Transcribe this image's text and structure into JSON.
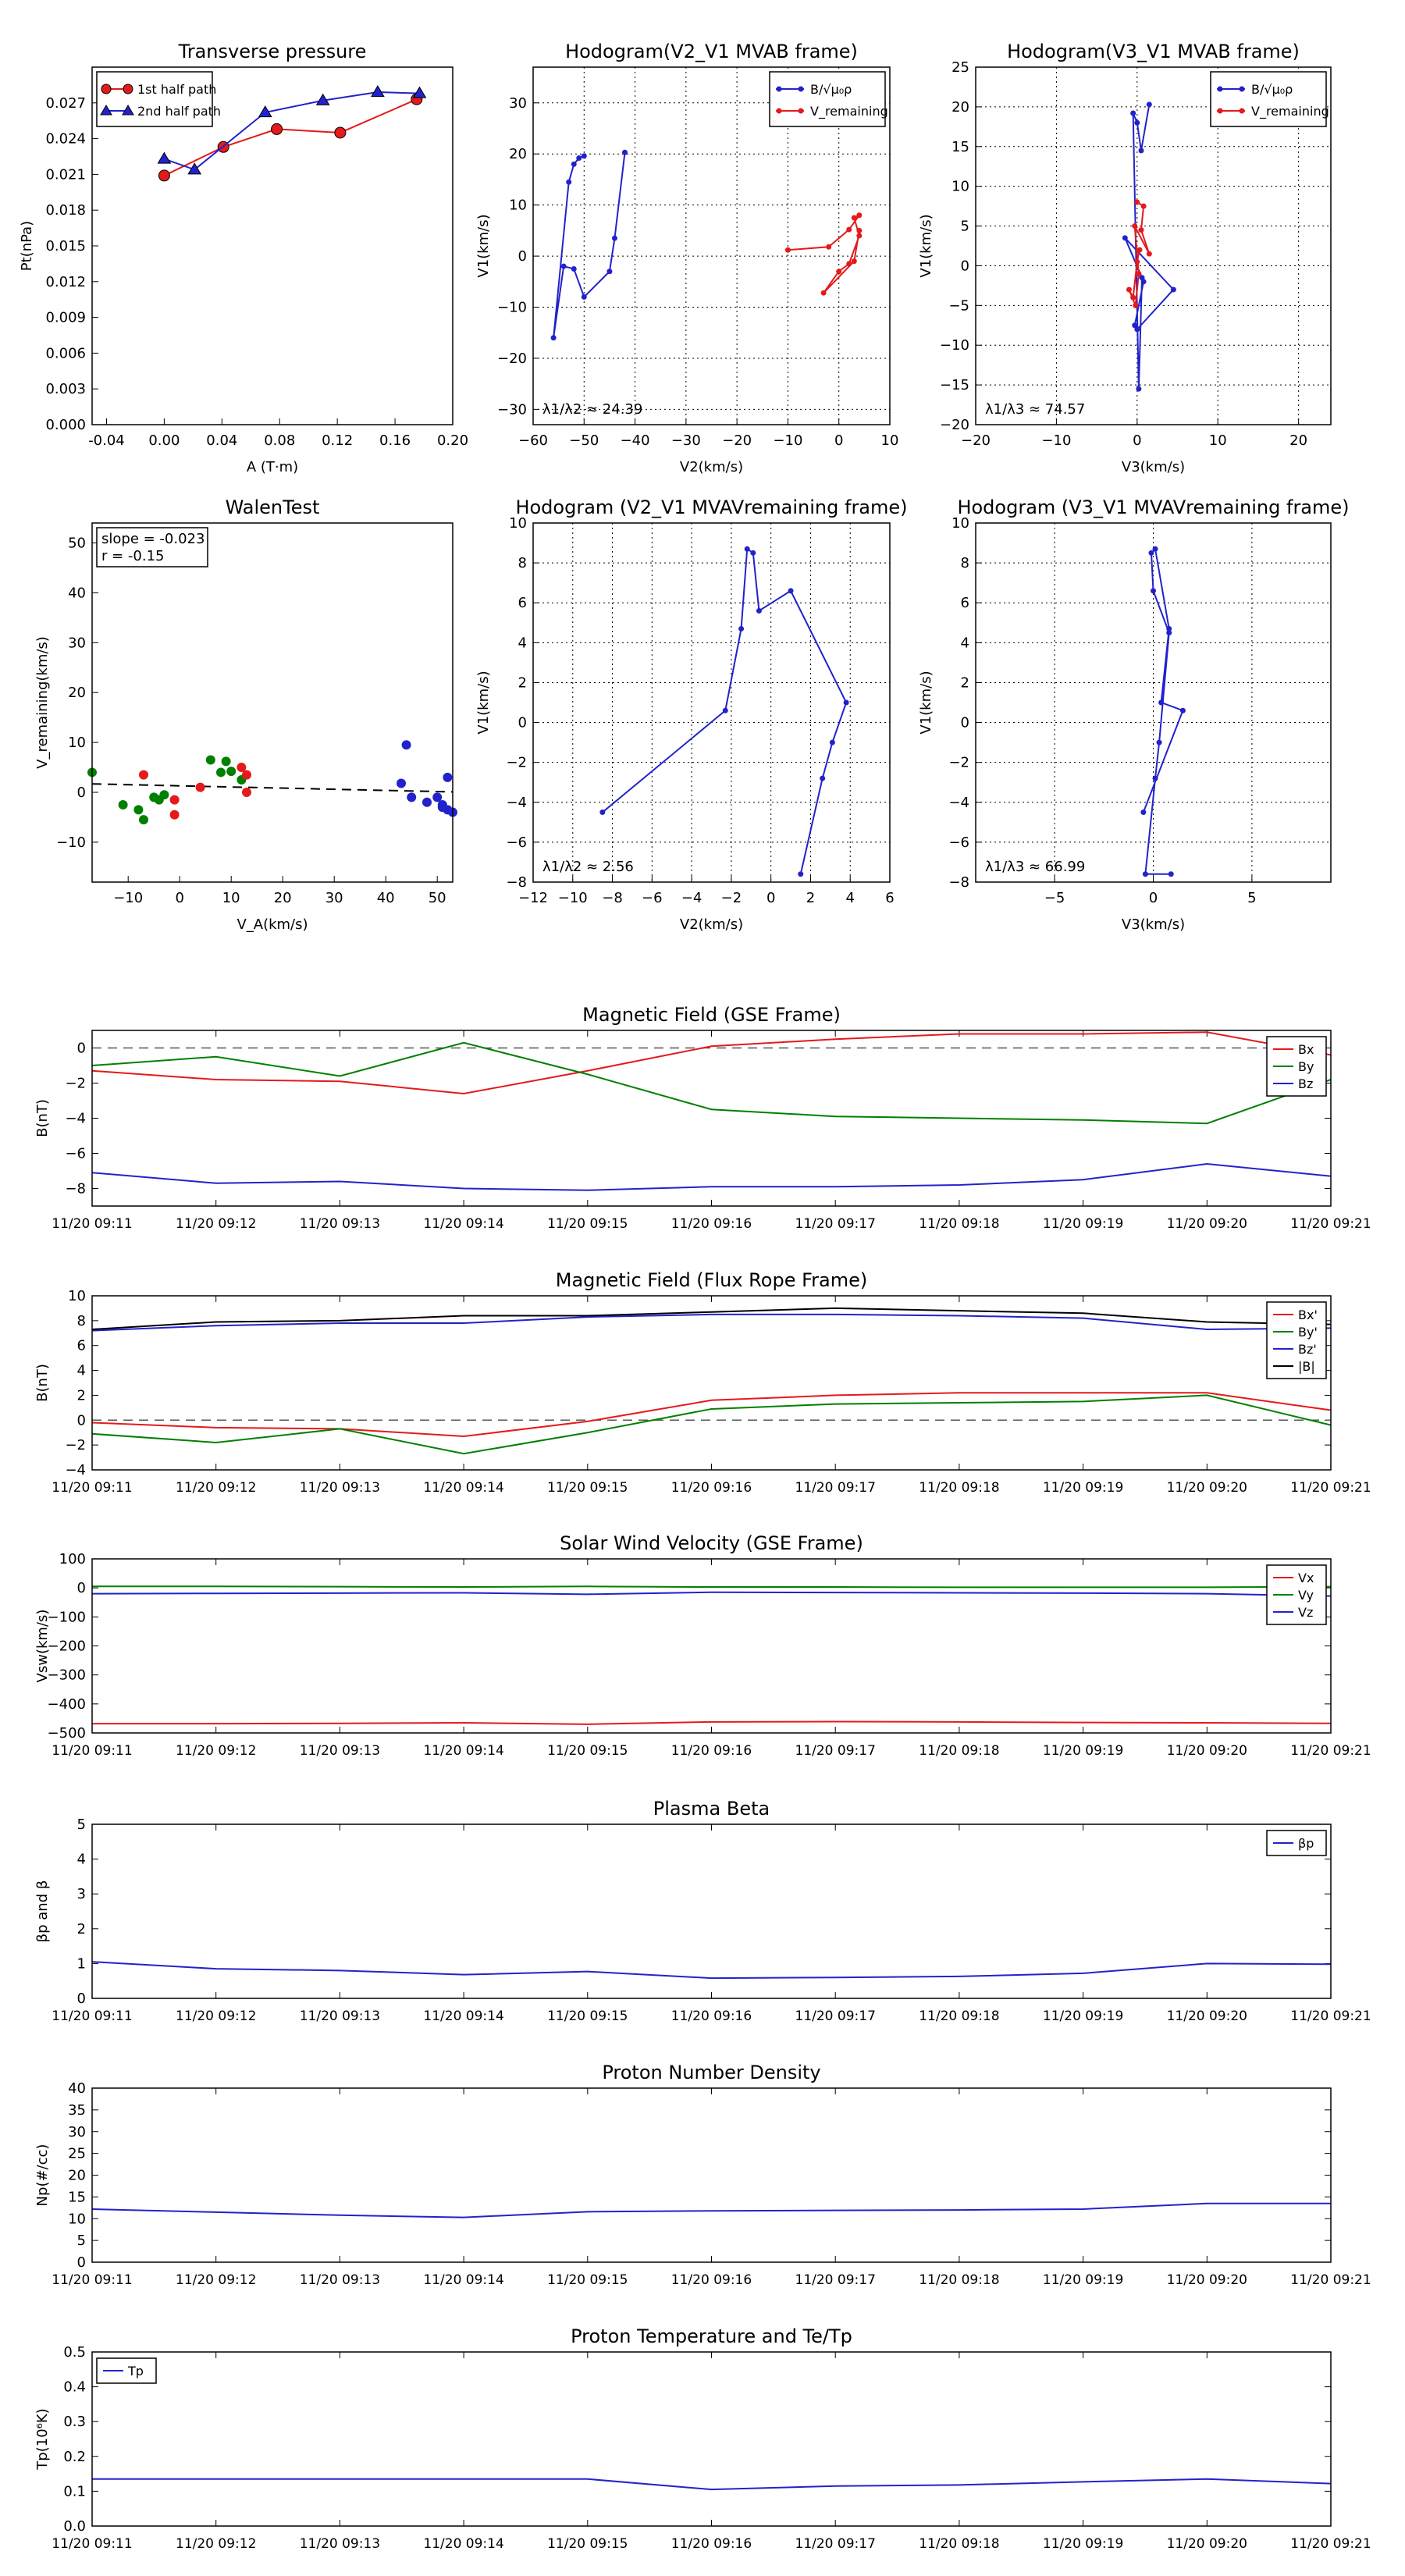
{
  "times": [
    "11/20 09:11",
    "11/20 09:12",
    "11/20 09:13",
    "11/20 09:14",
    "11/20 09:15",
    "11/20 09:16",
    "11/20 09:17",
    "11/20 09:18",
    "11/20 09:19",
    "11/20 09:20",
    "11/20 09:21"
  ],
  "chart_data": [
    {
      "id": "tp",
      "type": "line",
      "title": "Transverse pressure",
      "xlabel": "A (T·m)",
      "ylabel": "Pt(nPa)",
      "xlim": [
        -0.05,
        0.2
      ],
      "ylim": [
        0,
        0.03
      ],
      "xticks": [
        "-0.04",
        "0.00",
        "0.04",
        "0.08",
        "0.12",
        "0.16",
        "0.20"
      ],
      "yticks": [
        "0.000",
        "0.003",
        "0.006",
        "0.009",
        "0.012",
        "0.015",
        "0.018",
        "0.021",
        "0.024",
        "0.027"
      ],
      "legend": {
        "position": "top-left",
        "entries": [
          "1st half path",
          "2nd half path"
        ]
      },
      "series": [
        {
          "name": "1st half path",
          "color": "#e41a1c",
          "marker": "circle",
          "x": [
            0.0,
            0.041,
            0.078,
            0.122,
            0.175
          ],
          "y": [
            0.0209,
            0.0233,
            0.0248,
            0.0245,
            0.0273
          ]
        },
        {
          "name": "2nd half path",
          "color": "#2222cc",
          "marker": "triangle",
          "x": [
            0.0,
            0.021,
            0.07,
            0.11,
            0.148,
            0.177
          ],
          "y": [
            0.0223,
            0.0214,
            0.0262,
            0.0272,
            0.0279,
            0.0278
          ]
        }
      ]
    },
    {
      "id": "h1",
      "type": "line",
      "title": "Hodogram(V2_V1 MVAB frame)",
      "xlabel": "V2(km/s)",
      "ylabel": "V1(km/s)",
      "xlim": [
        -60,
        10
      ],
      "ylim": [
        -33,
        37
      ],
      "xticks": [
        "−60",
        "−50",
        "−40",
        "−30",
        "−20",
        "−10",
        "0",
        "10"
      ],
      "yticks": [
        "−30",
        "−20",
        "−10",
        "0",
        "10",
        "20",
        "30"
      ],
      "legend": {
        "position": "top-right",
        "entries": [
          "B/√μ₀ρ",
          "V_remaining"
        ]
      },
      "annotation": "λ1/λ2 ≈ 24.39",
      "series": [
        {
          "name": "B/√μ₀ρ",
          "color": "#2222cc",
          "marker": "dot",
          "x": [
            -42,
            -44,
            -45,
            -50,
            -52,
            -54,
            -56,
            -53,
            -52,
            -51,
            -50
          ],
          "y": [
            20.3,
            3.5,
            -3.0,
            -8.0,
            -2.5,
            -2.0,
            -16.0,
            14.5,
            18.0,
            19.2,
            19.6
          ]
        },
        {
          "name": "V_remaining",
          "color": "#e41a1c",
          "marker": "dot",
          "x": [
            -10,
            -2,
            2,
            4,
            3,
            4,
            2,
            0,
            -3,
            3,
            4
          ],
          "y": [
            1.2,
            1.8,
            5.2,
            8.0,
            7.5,
            4.0,
            -1.5,
            -3.0,
            -7.2,
            -1.0,
            5.0
          ]
        }
      ]
    },
    {
      "id": "h2",
      "type": "line",
      "title": "Hodogram(V3_V1 MVAB frame)",
      "xlabel": "V3(km/s)",
      "ylabel": "V1(km/s)",
      "xlim": [
        -20,
        24
      ],
      "ylim": [
        -20,
        25
      ],
      "xticks": [
        "−20",
        "−10",
        "0",
        "10",
        "20"
      ],
      "yticks": [
        "−20",
        "−15",
        "−10",
        "−5",
        "0",
        "5",
        "10",
        "15",
        "20",
        "25"
      ],
      "legend": {
        "position": "top-right",
        "entries": [
          "B/√μ₀ρ",
          "V_remaining"
        ]
      },
      "annotation": "λ1/λ3 ≈ 74.57",
      "series": [
        {
          "name": "B/√μ₀ρ",
          "color": "#2222cc",
          "marker": "dot",
          "x": [
            1.5,
            0.5,
            0.0,
            -0.5,
            0.2,
            0.6,
            -1.5,
            4.5,
            0.0,
            -0.3,
            0.8
          ],
          "y": [
            20.3,
            14.5,
            18.0,
            19.2,
            -15.5,
            -1.5,
            3.5,
            -3.0,
            -8.0,
            -7.5,
            -2.0
          ]
        },
        {
          "name": "V_remaining",
          "color": "#e41a1c",
          "marker": "dot",
          "x": [
            0.0,
            0.8,
            0.5,
            1.5,
            -0.3,
            0.2,
            -0.2,
            -1.0,
            -0.5,
            0.0,
            0.3
          ],
          "y": [
            8.0,
            7.5,
            4.5,
            1.5,
            5.0,
            -1.0,
            -5.0,
            -3.0,
            -4.0,
            0.5,
            2.0
          ]
        }
      ]
    },
    {
      "id": "walen",
      "type": "scatter",
      "title": "WalenTest",
      "xlabel": "V_A(km/s)",
      "ylabel": "V_remaining(km/s)",
      "xlim": [
        -17,
        53
      ],
      "ylim": [
        -18,
        54
      ],
      "xticks": [
        "−10",
        "0",
        "10",
        "20",
        "30",
        "40",
        "50"
      ],
      "yticks": [
        "−10",
        "0",
        "10",
        "20",
        "30",
        "40",
        "50"
      ],
      "legend": {
        "position": "top-left",
        "entries": [
          "slope = -0.023",
          "r = -0.15"
        ]
      },
      "fit_line": {
        "slope": -0.023,
        "intercept": 1.3
      },
      "series": [
        {
          "name": "",
          "color": "#008000",
          "x": [
            -17,
            -11,
            -8,
            -7,
            -5,
            -4,
            -3,
            6,
            8,
            9,
            10,
            12
          ],
          "y": [
            4.0,
            -2.5,
            -3.5,
            -5.5,
            -1.0,
            -1.5,
            -0.5,
            6.5,
            4.0,
            6.2,
            4.2,
            2.5
          ]
        },
        {
          "name": "",
          "color": "#e41a1c",
          "x": [
            -7,
            -1,
            -1,
            4,
            12,
            13,
            13
          ],
          "y": [
            3.5,
            -1.5,
            -4.5,
            1.0,
            5.0,
            3.5,
            0.0
          ]
        },
        {
          "name": "",
          "color": "#2222cc",
          "x": [
            43,
            44,
            45,
            48,
            50,
            51,
            51,
            52,
            52,
            53
          ],
          "y": [
            1.8,
            9.5,
            -1.0,
            -2.0,
            -1.0,
            -2.5,
            -3.0,
            -3.5,
            3.0,
            -4.0
          ]
        }
      ]
    },
    {
      "id": "h3",
      "type": "line",
      "title": "Hodogram (V2_V1 MVAVremaining frame)",
      "xlabel": "V2(km/s)",
      "ylabel": "V1(km/s)",
      "xlim": [
        -12,
        6
      ],
      "ylim": [
        -8,
        10
      ],
      "xticks": [
        "−12",
        "−10",
        "−8",
        "−6",
        "−4",
        "−2",
        "0",
        "2",
        "4",
        "6"
      ],
      "yticks": [
        "−8",
        "−6",
        "−4",
        "−2",
        "0",
        "2",
        "4",
        "6",
        "8",
        "10"
      ],
      "annotation": "λ1/λ2 ≈ 2.56",
      "series": [
        {
          "name": "",
          "color": "#2222cc",
          "marker": "dot",
          "x": [
            -8.5,
            -2.3,
            -1.5,
            -1.2,
            -0.9,
            -0.6,
            1.0,
            3.8,
            3.1,
            2.6,
            1.5
          ],
          "y": [
            -4.5,
            0.6,
            4.7,
            8.7,
            8.5,
            5.6,
            6.6,
            1.0,
            -1.0,
            -2.8,
            -7.6
          ]
        }
      ]
    },
    {
      "id": "h4",
      "type": "line",
      "title": "Hodogram (V3_V1 MVAVremaining frame)",
      "xlabel": "V3(km/s)",
      "ylabel": "V1(km/s)",
      "xlim": [
        -9,
        9
      ],
      "ylim": [
        -8,
        10
      ],
      "xticks": [
        "−5",
        "0",
        "5"
      ],
      "yticks": [
        "−8",
        "−6",
        "−4",
        "−2",
        "0",
        "2",
        "4",
        "6",
        "8",
        "10"
      ],
      "annotation": "λ1/λ3 ≈ 66.99",
      "series": [
        {
          "name": "",
          "color": "#2222cc",
          "marker": "dot",
          "x": [
            -0.5,
            1.5,
            0.4,
            0.8,
            0.1,
            -0.1,
            0.0,
            0.8,
            0.3,
            0.1,
            -0.4,
            0.9
          ],
          "y": [
            -4.5,
            0.6,
            1.0,
            4.7,
            8.7,
            8.5,
            6.6,
            4.5,
            -1.0,
            -2.8,
            -7.6,
            -7.6
          ]
        }
      ]
    },
    {
      "id": "bgse",
      "type": "line",
      "title": "Magnetic Field (GSE Frame)",
      "ylabel": "B(nT)",
      "ylim": [
        -9,
        1
      ],
      "yticks": [
        "−8",
        "−6",
        "−4",
        "−2",
        "0"
      ],
      "zero_line": true,
      "legend": {
        "position": "top-right",
        "entries": [
          "Bx",
          "By",
          "Bz"
        ]
      },
      "x": [
        0,
        1,
        2,
        3,
        4,
        5,
        6,
        7,
        8,
        9,
        10
      ],
      "series": [
        {
          "name": "Bx",
          "color": "#e41a1c",
          "values": [
            -1.3,
            -1.8,
            -1.9,
            -2.6,
            -1.3,
            0.1,
            0.5,
            0.8,
            0.8,
            0.9,
            -0.4
          ]
        },
        {
          "name": "By",
          "color": "#008000",
          "values": [
            -1.0,
            -0.5,
            -1.6,
            0.3,
            -1.5,
            -3.5,
            -3.9,
            -4.0,
            -4.1,
            -4.3,
            -1.8
          ]
        },
        {
          "name": "Bz",
          "color": "#2222cc",
          "values": [
            -7.1,
            -7.7,
            -7.6,
            -8.0,
            -8.1,
            -7.9,
            -7.9,
            -7.8,
            -7.5,
            -6.6,
            -7.3
          ]
        }
      ]
    },
    {
      "id": "bfr",
      "type": "line",
      "title": "Magnetic Field (Flux Rope Frame)",
      "ylabel": "B(nT)",
      "ylim": [
        -4,
        10
      ],
      "yticks": [
        "−4",
        "−2",
        "0",
        "2",
        "4",
        "6",
        "8",
        "10"
      ],
      "zero_line": true,
      "legend": {
        "position": "top-right",
        "entries": [
          "Bx'",
          "By'",
          "Bz'",
          "|B|"
        ]
      },
      "x": [
        0,
        1,
        2,
        3,
        4,
        5,
        6,
        7,
        8,
        9,
        10
      ],
      "series": [
        {
          "name": "Bx'",
          "color": "#e41a1c",
          "values": [
            -0.2,
            -0.6,
            -0.7,
            -1.3,
            -0.1,
            1.6,
            2.0,
            2.2,
            2.2,
            2.2,
            0.8
          ]
        },
        {
          "name": "By'",
          "color": "#008000",
          "values": [
            -1.1,
            -1.8,
            -0.7,
            -2.7,
            -1.0,
            0.9,
            1.3,
            1.4,
            1.5,
            2.0,
            -0.4
          ]
        },
        {
          "name": "Bz'",
          "color": "#2222cc",
          "values": [
            7.2,
            7.6,
            7.8,
            7.8,
            8.3,
            8.5,
            8.5,
            8.4,
            8.2,
            7.3,
            7.4
          ]
        },
        {
          "name": "|B|",
          "color": "#000000",
          "values": [
            7.3,
            7.9,
            8.0,
            8.4,
            8.4,
            8.7,
            9.0,
            8.8,
            8.6,
            7.9,
            7.7
          ]
        }
      ]
    },
    {
      "id": "vsw",
      "type": "line",
      "title": "Solar Wind Velocity (GSE Frame)",
      "ylabel": "Vsw(km/s)",
      "ylim": [
        -500,
        100
      ],
      "yticks": [
        "−500",
        "−400",
        "−300",
        "−200",
        "−100",
        "0",
        "100"
      ],
      "legend": {
        "position": "top-right",
        "entries": [
          "Vx",
          "Vy",
          "Vz"
        ]
      },
      "x": [
        0,
        1,
        2,
        3,
        4,
        5,
        6,
        7,
        8,
        9,
        10
      ],
      "series": [
        {
          "name": "Vx",
          "color": "#e41a1c",
          "values": [
            -468,
            -468,
            -467,
            -465,
            -470,
            -462,
            -461,
            -462,
            -464,
            -465,
            -467
          ]
        },
        {
          "name": "Vy",
          "color": "#008000",
          "values": [
            5,
            5,
            4,
            3,
            5,
            3,
            3,
            2,
            2,
            2,
            4
          ]
        },
        {
          "name": "Vz",
          "color": "#2222cc",
          "values": [
            -20,
            -19,
            -18,
            -17,
            -22,
            -15,
            -16,
            -17,
            -18,
            -20,
            -28
          ]
        }
      ]
    },
    {
      "id": "beta",
      "type": "line",
      "title": "Plasma Beta",
      "ylabel": "βp and β",
      "ylim": [
        0,
        5
      ],
      "yticks": [
        "0",
        "1",
        "2",
        "3",
        "4",
        "5"
      ],
      "legend": {
        "position": "top-right",
        "entries": [
          "βp"
        ]
      },
      "x": [
        0,
        1,
        2,
        3,
        4,
        5,
        6,
        7,
        8,
        9,
        10
      ],
      "series": [
        {
          "name": "βp",
          "color": "#2222cc",
          "values": [
            1.05,
            0.85,
            0.8,
            0.68,
            0.77,
            0.58,
            0.6,
            0.63,
            0.72,
            1.0,
            0.98
          ]
        }
      ]
    },
    {
      "id": "np",
      "type": "line",
      "title": "Proton Number Density",
      "ylabel": "Np(#/cc)",
      "ylim": [
        0,
        40
      ],
      "yticks": [
        "0",
        "5",
        "10",
        "15",
        "20",
        "25",
        "30",
        "35",
        "40"
      ],
      "x": [
        0,
        1,
        2,
        3,
        4,
        5,
        6,
        7,
        8,
        9,
        10
      ],
      "series": [
        {
          "name": "",
          "color": "#2222cc",
          "values": [
            12.2,
            11.5,
            10.8,
            10.3,
            11.6,
            11.8,
            11.9,
            12.0,
            12.2,
            13.5,
            13.5
          ]
        }
      ]
    },
    {
      "id": "tpr",
      "type": "line",
      "title": "Proton Temperature and Te/Tp",
      "ylabel": "Tp(10⁶K)",
      "ylim": [
        0,
        0.5
      ],
      "yticks": [
        "0.0",
        "0.1",
        "0.2",
        "0.3",
        "0.4",
        "0.5"
      ],
      "legend": {
        "position": "top-left",
        "entries": [
          "Tp"
        ]
      },
      "x": [
        0,
        1,
        2,
        3,
        4,
        5,
        6,
        7,
        8,
        9,
        10
      ],
      "series": [
        {
          "name": "Tp",
          "color": "#2222cc",
          "values": [
            0.135,
            0.135,
            0.135,
            0.135,
            0.135,
            0.105,
            0.115,
            0.118,
            0.127,
            0.135,
            0.122
          ]
        }
      ]
    }
  ]
}
